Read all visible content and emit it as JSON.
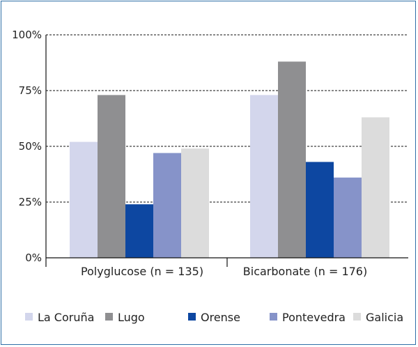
{
  "chart_data": {
    "type": "bar",
    "categories": [
      "Polyglucose (n = 135)",
      "Bicarbonate (n = 176)"
    ],
    "series": [
      {
        "name": "La Coruña",
        "color": "#d3d6ec",
        "values": [
          52,
          73
        ]
      },
      {
        "name": "Lugo",
        "color": "#8f8f91",
        "values": [
          73,
          88
        ]
      },
      {
        "name": "Orense",
        "color": "#0d47a1",
        "values": [
          24,
          43
        ]
      },
      {
        "name": "Pontevedra",
        "color": "#8693c9",
        "values": [
          47,
          36
        ]
      },
      {
        "name": "Galicia",
        "color": "#dcdcdc",
        "values": [
          49,
          63
        ]
      }
    ],
    "yticks": [
      "0%",
      "25%",
      "50%",
      "75%",
      "100%"
    ],
    "ylim": [
      0,
      100
    ],
    "grid": true,
    "gridline_style": "dashed",
    "legend_placement": "bottom"
  }
}
